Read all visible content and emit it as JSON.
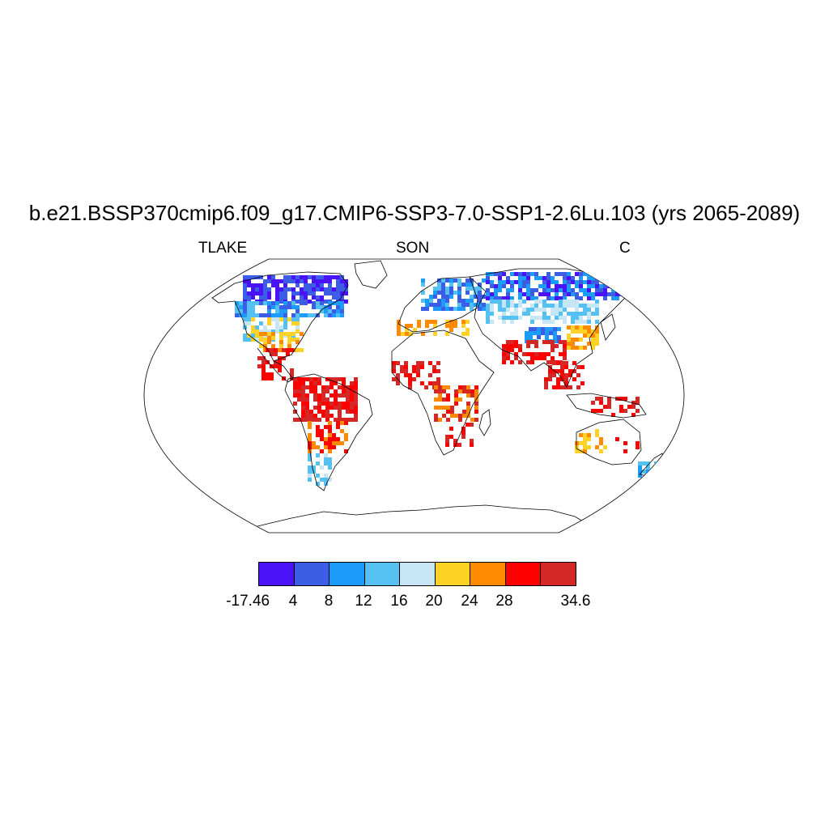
{
  "title": "b.e21.BSSP370cmip6.f09_g17.CMIP6-SSP3-7.0-SSP1-2.6Lu.103 (yrs 2065-2089)",
  "subtitle_left": "TLAKE",
  "subtitle_center": "SON",
  "subtitle_right": "C",
  "colorbar": {
    "colors": [
      "#4a12f6",
      "#3c5ee6",
      "#1b9cfb",
      "#55c1f2",
      "#c6e6f6",
      "#ffd227",
      "#ff8a00",
      "#ff0000",
      "#d62727"
    ],
    "labels": [
      "-17.46",
      "4",
      "8",
      "12",
      "16",
      "20",
      "24",
      "28",
      "34.6"
    ]
  },
  "map": {
    "projection": "Robinson",
    "ocean_color": "#ffffff",
    "coastline_color": "#000000"
  }
}
